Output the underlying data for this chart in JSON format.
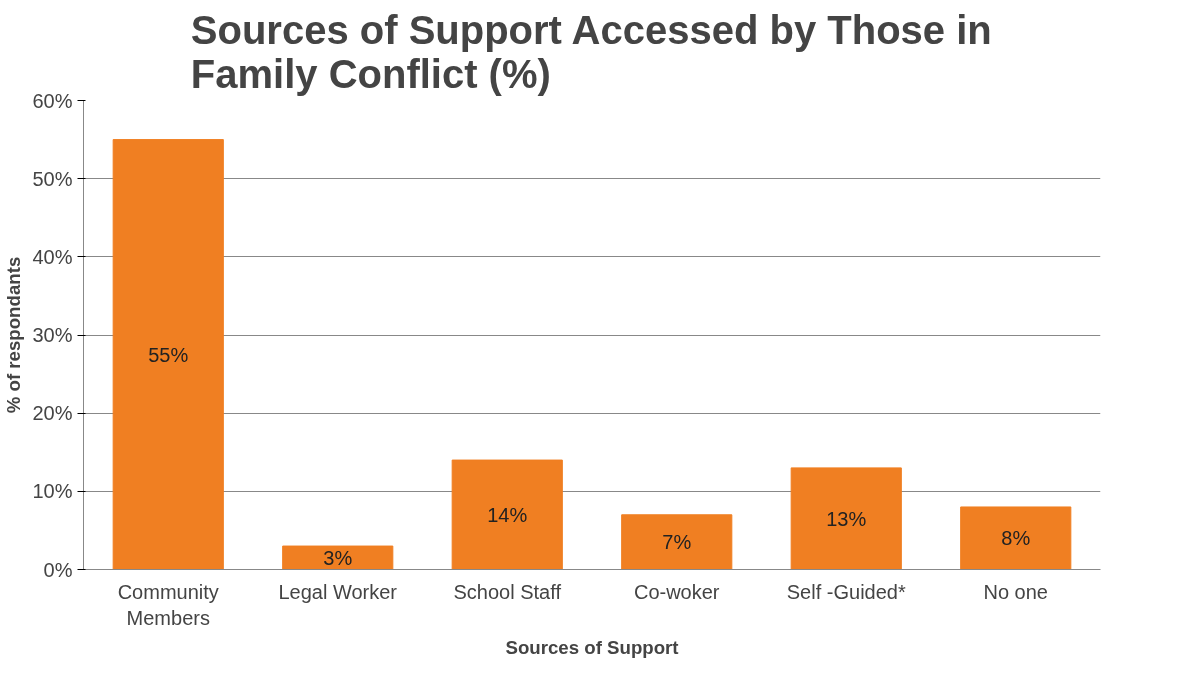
{
  "chart_data": {
    "type": "bar",
    "title": "Sources of Support Accessed by Those in Family Conflict (%)",
    "xlabel": "Sources of Support",
    "ylabel": "% of respondants",
    "categories": [
      "Community Members",
      "Legal Worker",
      "School Staff",
      "Co-woker",
      "Self -Guided*",
      "No one"
    ],
    "values": [
      55,
      3,
      14,
      7,
      13,
      8
    ],
    "value_labels": [
      "55%",
      "3%",
      "14%",
      "7%",
      "13%",
      "8%"
    ],
    "color": "#f07f22",
    "ylim": [
      0,
      60
    ],
    "yticks": [
      {
        "value": 0,
        "label": "0%"
      },
      {
        "value": 10,
        "label": "10%"
      },
      {
        "value": 20,
        "label": "20%"
      },
      {
        "value": 30,
        "label": "30%"
      },
      {
        "value": 40,
        "label": "40%"
      },
      {
        "value": 50,
        "label": "50%"
      },
      {
        "value": 60,
        "label": "60%"
      }
    ],
    "grid": "y"
  }
}
